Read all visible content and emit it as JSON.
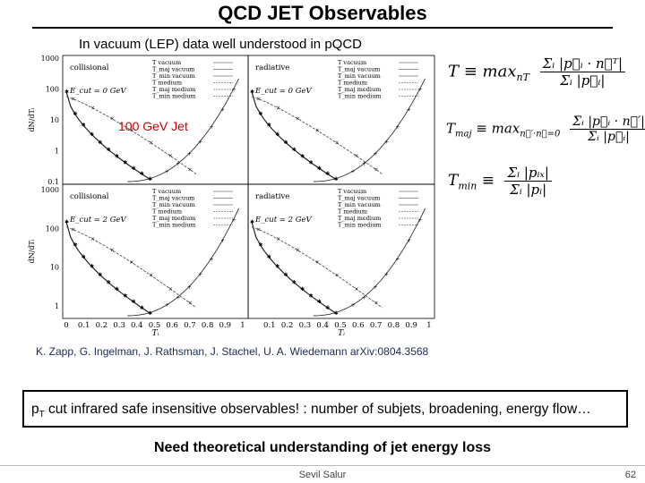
{
  "slide": {
    "title": "QCD JET Observables",
    "subtitle": "In vacuum (LEP) data well understood in pQCD",
    "jet_label": "100 GeV Jet",
    "citation": "K. Zapp, G. Ingelman, J. Rathsman, J. Stachel, U. A. Wiedemann arXiv:0804.3568",
    "box_note": {
      "pre": "p",
      "sub": "T",
      "post": " cut infrared safe insensitive observables! :  number of subjets, broadening, energy flow…"
    },
    "bottom_note": "Need theoretical understanding of jet energy loss",
    "author": "Sevil Salur",
    "page": "62",
    "accent_color": "#cc0000"
  },
  "equations": {
    "T": {
      "lhs": "T ≡ max",
      "sub": "nT",
      "num": "Σᵢ |p⃗ᵢ · n⃗ᵀ|",
      "den": "Σᵢ |p⃗ᵢ|"
    },
    "Tmaj": {
      "lhs": "T",
      "lhs_sub": "maj",
      "mid": " ≡ max",
      "sub": "n⃗′·n⃗=0",
      "num": "Σᵢ |p⃗ᵢ · n⃗′|",
      "den": "Σᵢ |p⃗ᵢ|"
    },
    "Tmin": {
      "lhs": "T",
      "lhs_sub": "min",
      "mid": " ≡ ",
      "num": "Σᵢ |pᵢₓ|",
      "den": "Σᵢ |pᵢ|"
    }
  },
  "figure": {
    "y_ticks_top": [
      "1000",
      "100",
      "10",
      "1",
      "0.1"
    ],
    "y_ticks_bottom": [
      "1000",
      "100",
      "10",
      "1"
    ],
    "x_ticks": [
      "0",
      "0.1",
      "0.2",
      "0.3",
      "0.4",
      "0.5",
      "0.6",
      "0.7",
      "0.8",
      "0.9",
      "1"
    ],
    "y_label_top": "dN/dTᵢ",
    "y_label_bottom": "dN/dTᵢ",
    "x_label": "Tᵢ",
    "panels": [
      {
        "label": "collisional",
        "ecut": "E_cut = 0 GeV",
        "legend": [
          "T  vacuum",
          "T_maj  vacuum",
          "T_min  vacuum",
          "T  medium",
          "T_maj  medium",
          "T_min  medium"
        ]
      },
      {
        "label": "radiative",
        "ecut": "E_cut = 0 GeV",
        "legend": [
          "T  vacuum",
          "T_maj  vacuum",
          "T_min  vacuum",
          "T  medium",
          "T_maj  medium",
          "T_min  medium"
        ]
      },
      {
        "label": "collisional",
        "ecut": "E_cut = 2 GeV",
        "legend": [
          "T  vacuum",
          "T_maj  vacuum",
          "T_min  vacuum",
          "T  medium",
          "T_maj  medium",
          "T_min  medium"
        ]
      },
      {
        "label": "radiative",
        "ecut": "E_cut = 2 GeV",
        "legend": [
          "T  vacuum",
          "T_maj  vacuum",
          "T_min  vacuum",
          "T  medium",
          "T_maj  medium",
          "T_min  medium"
        ]
      }
    ]
  }
}
